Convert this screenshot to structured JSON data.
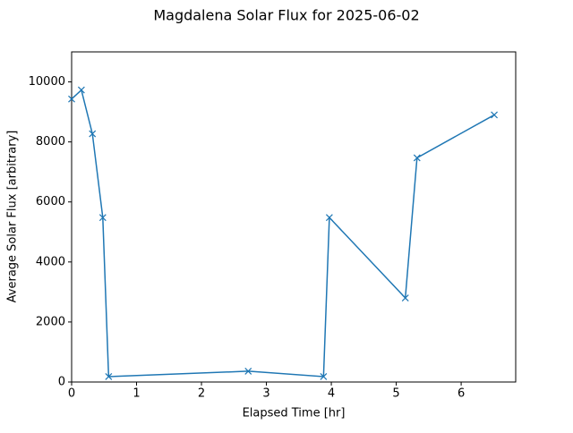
{
  "chart_data": {
    "type": "line",
    "title": "Magdalena Solar Flux for 2025-06-02",
    "xlabel": "Elapsed Time [hr]",
    "ylabel": "Average Solar Flux [arbitrary]",
    "x": [
      0,
      0.15,
      0.32,
      0.48,
      0.57,
      2.72,
      3.88,
      3.97,
      5.14,
      5.32,
      6.51
    ],
    "series": [
      {
        "color": "#1f77b4",
        "marker": "x",
        "values": [
          9430,
          9730,
          8270,
          5480,
          180,
          360,
          180,
          5480,
          2800,
          7470,
          8900
        ]
      }
    ],
    "xlim": [
      0,
      6.84
    ],
    "xticks": [
      0,
      1,
      2,
      3,
      4,
      5,
      6
    ],
    "ylim": [
      0,
      11000
    ],
    "yticks": [
      0,
      2000,
      4000,
      6000,
      8000,
      10000
    ],
    "grid": false
  }
}
